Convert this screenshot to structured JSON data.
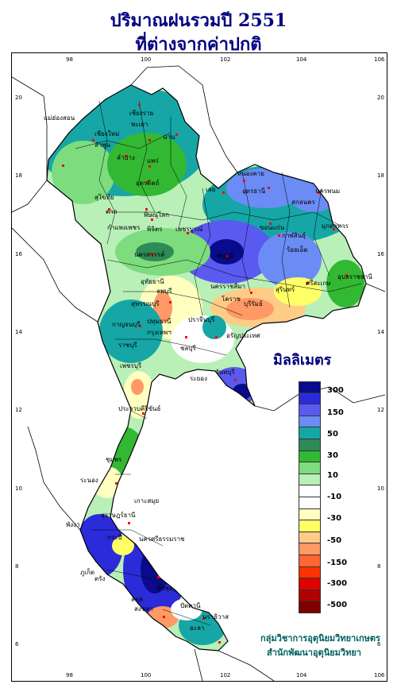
{
  "title": {
    "line1": "ปริมาณฝนรวมปี 2551",
    "line2": "ที่ต่างจากค่าปกติ"
  },
  "axes": {
    "x_ticks": [
      "98",
      "100",
      "102",
      "104",
      "106"
    ],
    "y_ticks": [
      "20",
      "18",
      "16",
      "14",
      "12",
      "10",
      "8",
      "6"
    ]
  },
  "legend": {
    "title": "มิลลิเมตร",
    "labels": [
      "300",
      "150",
      "50",
      "30",
      "10",
      "-10",
      "-30",
      "-50",
      "-150",
      "-300",
      "-500"
    ],
    "colors": [
      "#0a0a8c",
      "#2b2bd9",
      "#5a5af0",
      "#6b8cf5",
      "#16a6a6",
      "#2e8b57",
      "#33b833",
      "#7ddc7d",
      "#b8f0b8",
      "#ffffff",
      "#ffffff",
      "#ffffc0",
      "#ffff66",
      "#ffcc88",
      "#ff9966",
      "#ff6633",
      "#ff3300",
      "#e00000",
      "#b00000",
      "#800000"
    ]
  },
  "provinces": [
    "เชียงราย",
    "แม่ฮ่องสอน",
    "เชียงใหม่",
    "พะเยา",
    "ลำพูน",
    "น่าน",
    "ลำปาง",
    "แพร่",
    "อุตรดิตถ์",
    "หนองคาย",
    "อุดรธานี",
    "สกลนคร",
    "นครพนม",
    "เลย",
    "ตาก",
    "สุโขทัย",
    "พิษณุโลก",
    "ขอนแก่น",
    "มุกดาหาร",
    "กำแพงเพชร",
    "พิจิตร",
    "เพชรบูรณ์",
    "กาฬสินธุ์",
    "นครสวรรค์",
    "ชัยภูมิ",
    "ร้อยเอ็ด",
    "อุบลราชธานี",
    "อุทัยธานี",
    "ลพบุรี",
    "นครราชสีมา",
    "สุรินทร์",
    "ศรีสะเกษ",
    "สุพรรณบุรี",
    "กาญจนบุรี",
    "ปทุมธานี",
    "กรุงเทพฯ",
    "ราชบุรี",
    "ปราจีนบุรี",
    "บุรีรัมย์",
    "ชลบุรี",
    "ระยอง",
    "จันทบุรี",
    "เพชรบุรี",
    "ประจวบคีรีขันธ์",
    "ชุมพร",
    "ระนอง",
    "สุราษฎร์ธานี",
    "นครศรีธรรมราช",
    "พังงา",
    "ภูเก็ต",
    "กระบี่",
    "ตรัง",
    "พัทลุง",
    "สตูล",
    "สงขลา",
    "ปัตตานี",
    "นราธิวาส",
    "ยะลา",
    "อรัญประเทศ",
    "โคราช",
    "เกาะสมุย"
  ],
  "credits": {
    "line1": "กลุ่มวิชาการอุตุนิยมวิทยาเกษตร",
    "line2": "สำนักพัฒนาอุตุนิยมวิทยา"
  }
}
